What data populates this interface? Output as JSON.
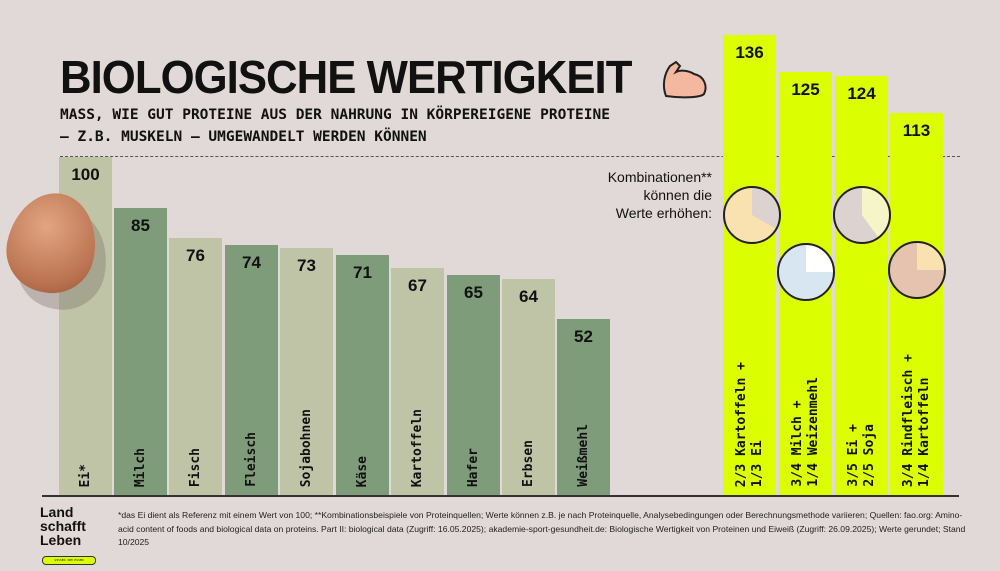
{
  "title": "BIOLOGISCHE WERTIGKEIT",
  "subtitle": "MASS, WIE GUT PROTEINE AUS DER NAHRUNG IN KÖRPEREIGENE PROTEINE\n– Z.B. MUSKELN – UMGEWANDELT WERDEN KÖNNEN",
  "combo_note": "Kombinationen**\nkönnen die\nWerte erhöhen:",
  "footnote": "*das Ei dient als Referenz mit einem Wert von 100; **Kombinationsbeispiele von Proteinquellen; Werte können z.B. je nach Proteinquelle, Analysebedingungen oder Berechnungsmethode variieren; Quellen: fao.org: Amino-acid content of foods and biological data on proteins. Part II: biological data (Zugriff: 16.05.2025); akademie-sport-gesundheit.de: Biologische Wertigkeit von Proteinen und Eiweiß (Zugriff: 26.09.2025); Werte gerundet; Stand 10/2025",
  "logo": {
    "line1": "Land",
    "line2": "schafft",
    "line3": "Leben",
    "tagline": "WISSEN ZUM ESSEN"
  },
  "colors": {
    "background": "#e0d9d7",
    "bar_light": "#bfc4a6",
    "bar_dark": "#7f9c7a",
    "combo": "#dcff00"
  },
  "chart_data": {
    "type": "bar",
    "title": "BIOLOGISCHE WERTIGKEIT",
    "ylim": [
      0,
      140
    ],
    "grid": false,
    "reference_line": 100,
    "categories": [
      "Ei*",
      "Milch",
      "Fisch",
      "Fleisch",
      "Sojabohnen",
      "Käse",
      "Kartoffeln",
      "Hafer",
      "Erbsen",
      "Weißmehl",
      "2/3 Kartoffeln +\n1/3 Ei",
      "3/4 Milch +\n1/4 Weizenmehl",
      "3/5 Ei +\n2/5 Soja",
      "3/4 Rindfleisch +\n1/4 Kartoffeln"
    ],
    "values": [
      100,
      85,
      76,
      74,
      73,
      71,
      67,
      65,
      64,
      52,
      136,
      125,
      124,
      113
    ],
    "groups": [
      "single",
      "single",
      "single",
      "single",
      "single",
      "single",
      "single",
      "single",
      "single",
      "single",
      "combination",
      "combination",
      "combination",
      "combination"
    ]
  }
}
